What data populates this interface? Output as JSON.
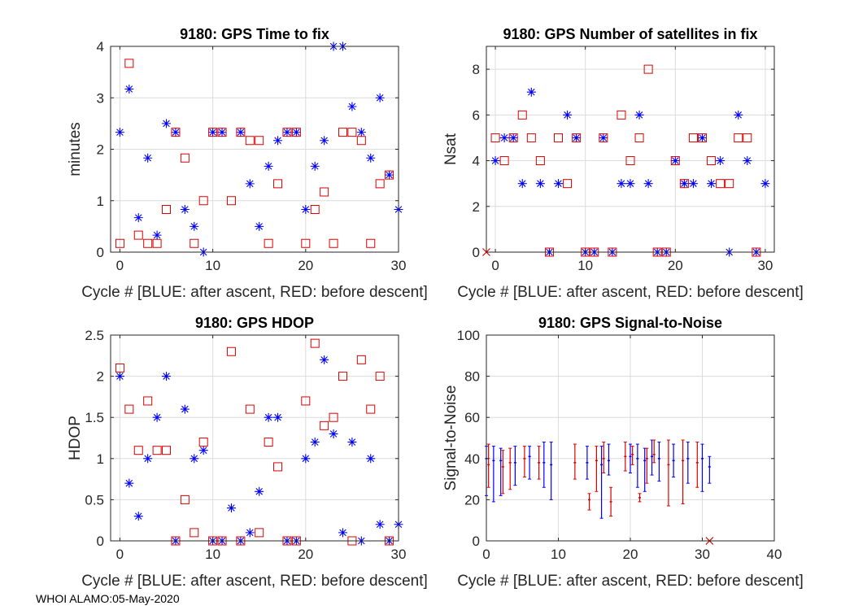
{
  "footer": "WHOI ALAMO:05-May-2020",
  "colors": {
    "blue": "#0000ff",
    "red": "#dd0000",
    "axes": "#262626",
    "grid": "#dcdcdc"
  },
  "chart_data": [
    {
      "type": "scatter",
      "title": "9180: GPS Time to fix",
      "xlabel": "Cycle #  [BLUE: after ascent, RED: before descent]",
      "ylabel": "minutes",
      "xlim": [
        -1,
        30
      ],
      "ylim": [
        0,
        4
      ],
      "xticks": [
        0,
        10,
        20,
        30
      ],
      "yticks": [
        0,
        1,
        2,
        3,
        4
      ],
      "grid": true,
      "series": [
        {
          "name": "after ascent",
          "color": "blue",
          "marker": "asterisk",
          "x": [
            0,
            1,
            2,
            3,
            4,
            5,
            6,
            7,
            8,
            9,
            10,
            11,
            13,
            14,
            15,
            16,
            17,
            18,
            19,
            20,
            21,
            22,
            23,
            24,
            25,
            26,
            27,
            28,
            29,
            30
          ],
          "y": [
            2.33,
            3.17,
            0.67,
            1.83,
            0.33,
            2.5,
            2.33,
            0.83,
            0.5,
            0.0,
            2.33,
            2.33,
            2.33,
            1.33,
            0.5,
            1.67,
            2.17,
            2.33,
            2.33,
            0.83,
            1.67,
            2.17,
            4.0,
            4.0,
            2.83,
            2.33,
            1.83,
            3.0,
            1.5,
            0.83
          ]
        },
        {
          "name": "before descent",
          "color": "red",
          "marker": "square",
          "x": [
            0,
            1,
            2,
            3,
            4,
            5,
            6,
            7,
            8,
            9,
            10,
            11,
            12,
            13,
            14,
            15,
            16,
            17,
            18,
            19,
            20,
            21,
            22,
            23,
            24,
            25,
            26,
            27,
            28,
            29
          ],
          "y": [
            0.17,
            3.67,
            0.33,
            0.17,
            0.17,
            0.83,
            2.33,
            1.83,
            0.17,
            1.0,
            2.33,
            2.33,
            1.0,
            2.33,
            2.17,
            2.17,
            0.17,
            1.33,
            2.33,
            2.33,
            0.17,
            0.83,
            1.17,
            0.17,
            2.33,
            2.33,
            2.17,
            0.17,
            1.33,
            1.5
          ]
        }
      ]
    },
    {
      "type": "scatter",
      "title": "9180: GPS Number of satellites in fix",
      "xlabel": "Cycle #  [BLUE: after ascent, RED: before descent]",
      "ylabel": "Nsat",
      "xlim": [
        -1,
        31
      ],
      "ylim": [
        0,
        9
      ],
      "xticks": [
        0,
        10,
        20,
        30
      ],
      "yticks": [
        0,
        2,
        4,
        6,
        8
      ],
      "grid": true,
      "series": [
        {
          "name": "after ascent",
          "color": "blue",
          "marker": "asterisk",
          "x": [
            0,
            1,
            2,
            3,
            4,
            5,
            6,
            7,
            8,
            9,
            10,
            11,
            12,
            13,
            14,
            15,
            16,
            17,
            18,
            19,
            20,
            21,
            22,
            23,
            24,
            25,
            26,
            27,
            28,
            29,
            30
          ],
          "y": [
            4,
            5,
            5,
            3,
            7,
            3,
            0,
            3,
            6,
            5,
            0,
            0,
            5,
            0,
            3,
            3,
            6,
            3,
            0,
            0,
            4,
            3,
            3,
            5,
            3,
            4,
            0,
            6,
            4,
            0,
            3
          ]
        },
        {
          "name": "before descent",
          "color": "red",
          "marker": "square",
          "x": [
            0,
            1,
            2,
            3,
            4,
            5,
            6,
            7,
            8,
            9,
            10,
            11,
            12,
            13,
            14,
            15,
            16,
            17,
            18,
            19,
            20,
            21,
            22,
            23,
            24,
            25,
            26,
            27,
            28,
            29
          ],
          "y": [
            5,
            4,
            5,
            6,
            5,
            4,
            0,
            5,
            3,
            5,
            0,
            0,
            5,
            0,
            6,
            4,
            5,
            8,
            0,
            0,
            4,
            3,
            5,
            5,
            4,
            3,
            3,
            5,
            5,
            0
          ]
        },
        {
          "name": "marker",
          "color": "red",
          "marker": "x",
          "x": [
            -1
          ],
          "y": [
            0
          ]
        }
      ]
    },
    {
      "type": "scatter",
      "title": "9180: GPS HDOP",
      "xlabel": "Cycle #  [BLUE: after ascent, RED: before descent]",
      "ylabel": "HDOP",
      "xlim": [
        -1,
        30
      ],
      "ylim": [
        0,
        2.5
      ],
      "xticks": [
        0,
        10,
        20,
        30
      ],
      "yticks": [
        0,
        0.5,
        1,
        1.5,
        2,
        2.5
      ],
      "grid": true,
      "series": [
        {
          "name": "after ascent",
          "color": "blue",
          "marker": "asterisk",
          "x": [
            0,
            1,
            2,
            3,
            4,
            5,
            6,
            7,
            8,
            9,
            10,
            11,
            12,
            13,
            14,
            15,
            16,
            17,
            18,
            19,
            20,
            21,
            22,
            23,
            24,
            25,
            26,
            27,
            28,
            29,
            30
          ],
          "y": [
            2.0,
            0.7,
            0.3,
            1.0,
            1.5,
            2.0,
            0.0,
            1.6,
            1.0,
            1.1,
            0.0,
            0.0,
            0.4,
            0.0,
            0.1,
            0.6,
            1.5,
            1.5,
            0.0,
            0.0,
            1.0,
            1.2,
            2.2,
            1.3,
            0.1,
            1.2,
            0.0,
            1.0,
            0.2,
            0.0,
            0.2
          ]
        },
        {
          "name": "before descent",
          "color": "red",
          "marker": "square",
          "x": [
            0,
            1,
            2,
            3,
            4,
            5,
            6,
            7,
            8,
            9,
            10,
            11,
            12,
            13,
            14,
            15,
            16,
            17,
            18,
            19,
            20,
            21,
            22,
            23,
            24,
            25,
            26,
            27,
            28,
            29
          ],
          "y": [
            2.1,
            1.6,
            1.1,
            1.7,
            1.1,
            1.1,
            0.0,
            0.5,
            0.1,
            1.2,
            0.0,
            0.0,
            2.3,
            0.0,
            1.6,
            0.1,
            1.2,
            0.9,
            0.0,
            0.0,
            1.7,
            2.4,
            1.4,
            1.5,
            2.0,
            0.0,
            2.2,
            1.6,
            2.0,
            0.0
          ]
        }
      ]
    },
    {
      "type": "errorbar",
      "title": "9180: GPS Signal-to-Noise",
      "xlabel": "Cycle #  [BLUE: after ascent, RED: before descent]",
      "ylabel": "Signal-to-Noise",
      "xlim": [
        0,
        40
      ],
      "ylim": [
        0,
        100
      ],
      "xticks": [
        0,
        10,
        20,
        30,
        40
      ],
      "yticks": [
        0,
        20,
        40,
        60,
        80,
        100
      ],
      "grid": true,
      "series": [
        {
          "name": "after ascent",
          "color": "blue",
          "x": [
            0,
            1,
            2,
            4,
            6,
            8,
            9,
            14,
            16,
            17,
            20,
            21,
            22,
            23,
            24,
            26,
            28,
            30,
            31
          ],
          "y": [
            40,
            39,
            39,
            38,
            41,
            38,
            37,
            38,
            37,
            39,
            41,
            40,
            39,
            41,
            40,
            39,
            40,
            40,
            36
          ],
          "low": [
            22,
            19,
            22,
            27,
            30,
            26,
            20,
            30,
            11,
            32,
            33,
            26,
            24,
            32,
            29,
            31,
            28,
            24,
            28
          ],
          "high": [
            46,
            46,
            45,
            46,
            46,
            48,
            48,
            46,
            46,
            47,
            47,
            47,
            45,
            49,
            48,
            47,
            48,
            47,
            41
          ]
        },
        {
          "name": "before descent",
          "color": "red",
          "x": [
            0.3,
            2.3,
            3.3,
            5.3,
            7.3,
            12.3,
            14.3,
            15.3,
            16.3,
            17.3,
            19.3,
            20.3,
            21.3,
            22.3,
            23.3,
            25.3,
            27.3,
            29.3
          ],
          "y": [
            37,
            36,
            38,
            40,
            38,
            38,
            20,
            39,
            40,
            19,
            41,
            42,
            21,
            40,
            42,
            37,
            39,
            38
          ],
          "low": [
            26,
            23,
            25,
            31,
            30,
            30,
            15,
            24,
            33,
            12,
            34,
            37,
            19,
            28,
            38,
            17,
            18,
            26
          ],
          "high": [
            47,
            44,
            45,
            46,
            46,
            47,
            23,
            46,
            48,
            26,
            48,
            46,
            23,
            45,
            49,
            49,
            49,
            48
          ]
        },
        {
          "name": "marker",
          "color": "red",
          "marker": "x",
          "x": [
            31
          ],
          "y": [
            0
          ]
        }
      ]
    }
  ]
}
